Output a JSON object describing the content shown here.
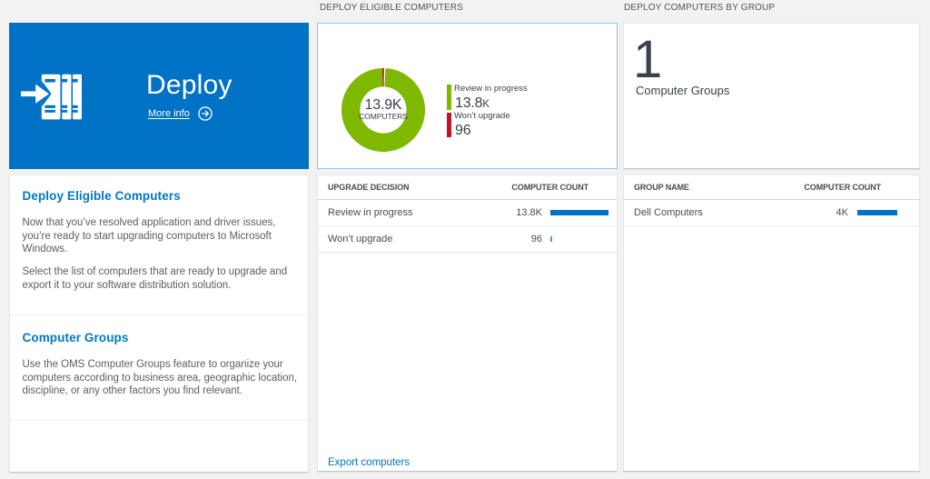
{
  "colors": {
    "accent_blue": "#0072c6",
    "green": "#7eb900",
    "red": "#c01525",
    "selected_card_border": "#8cc6e8",
    "background": "#f2f2f2"
  },
  "tile": {
    "title": "Deploy",
    "more_info_label": "More info",
    "icon": "deploy-arrow-binders-icon"
  },
  "left_panel": {
    "sections": [
      {
        "heading": "Deploy Eligible Computers",
        "paragraph1": "Now that you’ve resolved application and driver issues,\nyou’re ready to start upgrading computers to Microsoft\nWindows.",
        "paragraph2": "Select the list of computers that are ready to upgrade and\nexport it to your software distribution solution."
      },
      {
        "heading": "Computer Groups",
        "paragraph1": "Use the OMS Computer Groups feature to organize your\ncomputers according to business area, geographic location,\ndiscipline, or any other factors you find relevant.",
        "paragraph2": ""
      }
    ]
  },
  "middle": {
    "title": "DEPLOY ELIGIBLE COMPUTERS",
    "donut": {
      "center_value": "13.9K",
      "center_label": "COMPUTERS",
      "legend": [
        {
          "label": "Review in progress",
          "value_text": "13.8",
          "suffix": "K",
          "value": 13800,
          "color": "#7eb900"
        },
        {
          "label": "Won’t upgrade",
          "value_text": "96",
          "suffix": "",
          "value": 96,
          "color": "#c01525"
        }
      ]
    },
    "table": {
      "header_left": "UPGRADE DECISION",
      "header_right": "COMPUTER COUNT",
      "rows": [
        {
          "label": "Review in progress",
          "value_text": "13.8K",
          "value": 13800
        },
        {
          "label": "Won’t upgrade",
          "value_text": "96",
          "value": 96
        }
      ],
      "bar_max_value": 13800
    },
    "export_link": "Export computers"
  },
  "right": {
    "title": "DEPLOY COMPUTERS BY GROUP",
    "summary": {
      "big_number": "1",
      "label": "Computer Groups"
    },
    "table": {
      "header_left": "GROUP NAME",
      "header_right": "COMPUTER COUNT",
      "rows": [
        {
          "label": "Dell Computers",
          "value_text": "4K",
          "value": 4000
        }
      ],
      "bar_max_value": 4000
    }
  },
  "chart_data": {
    "type": "pie",
    "title": "DEPLOY ELIGIBLE COMPUTERS",
    "labels": [
      "Review in progress",
      "Won't upgrade"
    ],
    "values": [
      13800,
      96
    ],
    "colors": [
      "#7eb900",
      "#c01525"
    ],
    "donut": true,
    "center_value": "13.9K",
    "center_label": "COMPUTERS"
  }
}
